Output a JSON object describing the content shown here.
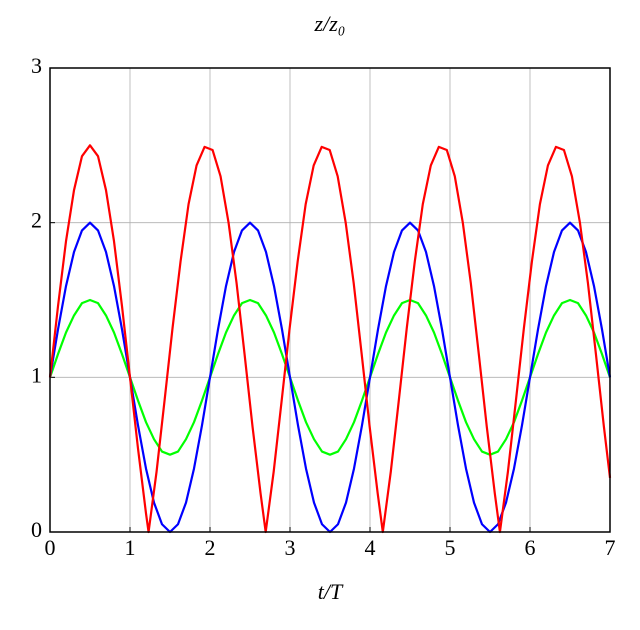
{
  "chart_data": {
    "type": "line",
    "title": "z/z₀",
    "x_label": "t/T",
    "xlim": [
      0,
      7
    ],
    "ylim": [
      0,
      3
    ],
    "xticks": [
      0,
      1,
      2,
      3,
      4,
      5,
      6,
      7
    ],
    "yticks": [
      0,
      1,
      2,
      3
    ],
    "grid": true,
    "series": [
      {
        "color": "#00ff00",
        "x": [
          0,
          0.1,
          0.2,
          0.3,
          0.4,
          0.5,
          0.6,
          0.7,
          0.8,
          0.9,
          1,
          1.1,
          1.2,
          1.3,
          1.4,
          1.5,
          1.6,
          1.7,
          1.8,
          1.9,
          2,
          2.1,
          2.2,
          2.3,
          2.4,
          2.5,
          2.6,
          2.7,
          2.8,
          2.9,
          3,
          3.1,
          3.2,
          3.3,
          3.4,
          3.5,
          3.6,
          3.7,
          3.8,
          3.9,
          4,
          4.1,
          4.2,
          4.3,
          4.4,
          4.5,
          4.6,
          4.7,
          4.8,
          4.9,
          5,
          5.1,
          5.2,
          5.3,
          5.4,
          5.5,
          5.6,
          5.7,
          5.8,
          5.9,
          6,
          6.1,
          6.2,
          6.3,
          6.4,
          6.5,
          6.6,
          6.7,
          6.8,
          6.9,
          7
        ],
        "values": [
          1,
          1.15,
          1.29,
          1.4,
          1.48,
          1.5,
          1.48,
          1.4,
          1.29,
          1.15,
          1,
          0.85,
          0.71,
          0.6,
          0.52,
          0.5,
          0.52,
          0.6,
          0.71,
          0.85,
          1,
          1.15,
          1.29,
          1.4,
          1.48,
          1.5,
          1.48,
          1.4,
          1.29,
          1.15,
          1,
          0.85,
          0.71,
          0.6,
          0.52,
          0.5,
          0.52,
          0.6,
          0.71,
          0.85,
          1,
          1.15,
          1.29,
          1.4,
          1.48,
          1.5,
          1.48,
          1.4,
          1.29,
          1.15,
          1,
          0.85,
          0.71,
          0.6,
          0.52,
          0.5,
          0.52,
          0.6,
          0.71,
          0.85,
          1,
          1.15,
          1.29,
          1.4,
          1.48,
          1.5,
          1.48,
          1.4,
          1.29,
          1.15,
          1
        ]
      },
      {
        "color": "#0000ff",
        "x": [
          0,
          0.1,
          0.2,
          0.3,
          0.4,
          0.5,
          0.6,
          0.7,
          0.8,
          0.9,
          1,
          1.1,
          1.2,
          1.3,
          1.4,
          1.5,
          1.6,
          1.7,
          1.8,
          1.9,
          2,
          2.1,
          2.2,
          2.3,
          2.4,
          2.5,
          2.6,
          2.7,
          2.8,
          2.9,
          3,
          3.1,
          3.2,
          3.3,
          3.4,
          3.5,
          3.6,
          3.7,
          3.8,
          3.9,
          4,
          4.1,
          4.2,
          4.3,
          4.4,
          4.5,
          4.6,
          4.7,
          4.8,
          4.9,
          5,
          5.1,
          5.2,
          5.3,
          5.4,
          5.5,
          5.6,
          5.7,
          5.8,
          5.9,
          6,
          6.1,
          6.2,
          6.3,
          6.4,
          6.5,
          6.6,
          6.7,
          6.8,
          6.9,
          7
        ],
        "values": [
          1,
          1.31,
          1.59,
          1.81,
          1.95,
          2,
          1.95,
          1.81,
          1.59,
          1.31,
          1,
          0.69,
          0.41,
          0.19,
          0.05,
          0,
          0.05,
          0.19,
          0.41,
          0.69,
          1,
          1.31,
          1.59,
          1.81,
          1.95,
          2,
          1.95,
          1.81,
          1.59,
          1.31,
          1,
          0.69,
          0.41,
          0.19,
          0.05,
          0,
          0.05,
          0.19,
          0.41,
          0.69,
          1,
          1.31,
          1.59,
          1.81,
          1.95,
          2,
          1.95,
          1.81,
          1.59,
          1.31,
          1,
          0.69,
          0.41,
          0.19,
          0.05,
          0,
          0.05,
          0.19,
          0.41,
          0.69,
          1,
          1.31,
          1.59,
          1.81,
          1.95,
          2,
          1.95,
          1.81,
          1.59,
          1.31,
          1
        ]
      },
      {
        "color": "#ff0000",
        "x": [
          0,
          0.1,
          0.2,
          0.3,
          0.4,
          0.5,
          0.6,
          0.7,
          0.8,
          0.9,
          1,
          1.1,
          1.2,
          1.232,
          1.332,
          1.432,
          1.532,
          1.632,
          1.732,
          1.832,
          1.932,
          2.032,
          2.132,
          2.232,
          2.332,
          2.432,
          2.532,
          2.632,
          2.696,
          2.796,
          2.896,
          2.996,
          3.096,
          3.196,
          3.296,
          3.396,
          3.496,
          3.596,
          3.696,
          3.796,
          3.896,
          3.996,
          4.096,
          4.16,
          4.26,
          4.36,
          4.46,
          4.56,
          4.66,
          4.76,
          4.86,
          4.96,
          5.06,
          5.16,
          5.26,
          5.36,
          5.46,
          5.56,
          5.624,
          5.724,
          5.824,
          5.924,
          6.024,
          6.124,
          6.224,
          6.324,
          6.424,
          6.524,
          6.624,
          6.724,
          6.824,
          6.924,
          7
        ],
        "values": [
          1,
          1.46,
          1.88,
          2.21,
          2.43,
          2.5,
          2.43,
          2.21,
          1.88,
          1.46,
          1,
          0.54,
          0.12,
          0,
          0.39,
          0.85,
          1.32,
          1.75,
          2.12,
          2.37,
          2.49,
          2.47,
          2.3,
          2,
          1.61,
          1.15,
          0.68,
          0.25,
          0,
          0.39,
          0.85,
          1.32,
          1.75,
          2.12,
          2.37,
          2.49,
          2.47,
          2.3,
          2,
          1.61,
          1.15,
          0.68,
          0.25,
          0,
          0.39,
          0.85,
          1.32,
          1.75,
          2.12,
          2.37,
          2.49,
          2.47,
          2.3,
          2,
          1.61,
          1.15,
          0.68,
          0.25,
          0,
          0.39,
          0.85,
          1.32,
          1.75,
          2.12,
          2.37,
          2.49,
          2.47,
          2.3,
          2,
          1.61,
          1.15,
          0.68,
          0.35
        ]
      }
    ]
  }
}
